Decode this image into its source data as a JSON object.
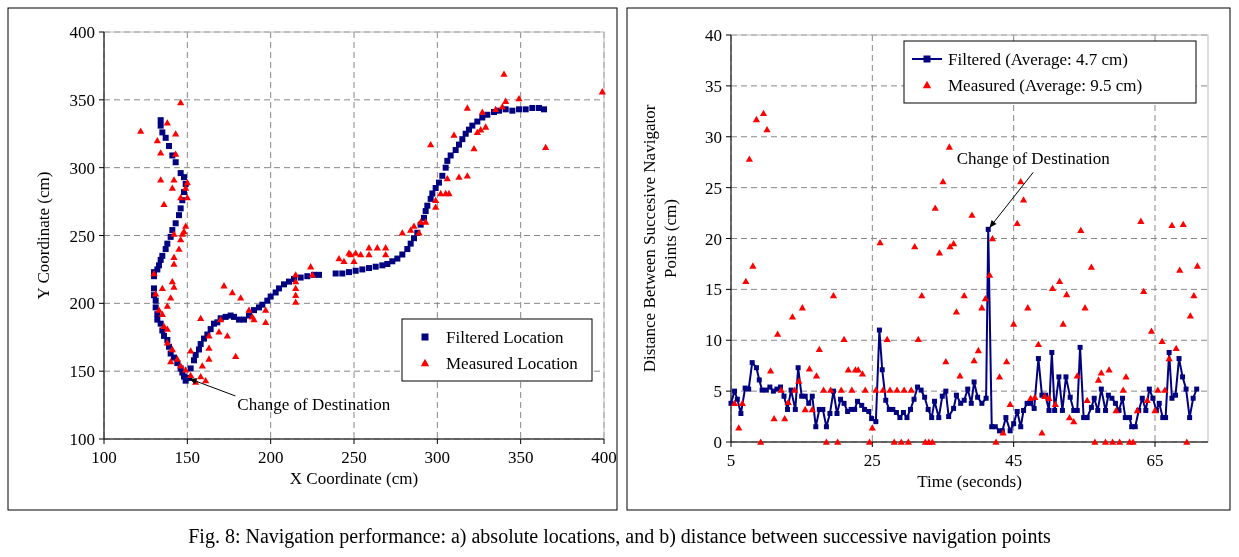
{
  "chart_data": [
    {
      "type": "scatter",
      "xlabel": "X Coordinate (cm)",
      "ylabel": "Y Coordinate (cm)",
      "xlim": [
        100,
        400
      ],
      "ylim": [
        100,
        400
      ],
      "xticks": [
        100,
        150,
        200,
        250,
        300,
        350,
        400
      ],
      "yticks": [
        100,
        150,
        200,
        250,
        300,
        350,
        400
      ],
      "grid": true,
      "legend": "bottom right",
      "annotations": [
        {
          "text": "Change of Destination",
          "x": 150,
          "y": 145
        },
        "Fig. 8: Navigation performance: a) absolute locations, and b) distance between successive navigation points"
      ],
      "series": [
        {
          "name": "Filtered Location",
          "color": "#000080",
          "marker": "square",
          "x": [
            134,
            134,
            135,
            137,
            139,
            141,
            143,
            146,
            148,
            149,
            148,
            147,
            146,
            145,
            143,
            141,
            140,
            138,
            137,
            135,
            134,
            133,
            132,
            130,
            130,
            130,
            130,
            131,
            131,
            132,
            132,
            134,
            135,
            136,
            138,
            139,
            140,
            142,
            144,
            146,
            147,
            148,
            149,
            151,
            152,
            154,
            155,
            157,
            158,
            160,
            162,
            164,
            166,
            168,
            170,
            173,
            176,
            178,
            181,
            184,
            187,
            190,
            193,
            195,
            198,
            200,
            203,
            205,
            208,
            211,
            214,
            218,
            222,
            226,
            229,
            239,
            243,
            247,
            251,
            255,
            259,
            263,
            267,
            270,
            273,
            276,
            279,
            282,
            284,
            286,
            288,
            290,
            292,
            293,
            294,
            296,
            297,
            299,
            301,
            303,
            305,
            306,
            308,
            311,
            313,
            315,
            317,
            319,
            321,
            324,
            327,
            330,
            334,
            337,
            341,
            345,
            349,
            353,
            357,
            361,
            364
          ],
          "values": [
            335,
            331,
            326,
            322,
            316,
            309,
            304,
            296,
            293,
            288,
            282,
            276,
            270,
            265,
            259,
            254,
            249,
            244,
            240,
            235,
            232,
            228,
            225,
            223,
            220,
            211,
            206,
            202,
            197,
            192,
            188,
            185,
            180,
            176,
            173,
            168,
            163,
            160,
            156,
            152,
            149,
            146,
            143,
            145,
            152,
            158,
            162,
            166,
            170,
            174,
            177,
            181,
            185,
            186,
            189,
            190,
            191,
            190,
            188,
            188,
            191,
            195,
            197,
            199,
            202,
            205,
            208,
            211,
            214,
            216,
            218,
            219,
            220,
            221,
            221,
            222,
            222,
            223,
            224,
            225,
            226,
            227,
            228,
            229,
            231,
            233,
            236,
            240,
            244,
            248,
            252,
            258,
            263,
            268,
            272,
            277,
            281,
            285,
            289,
            294,
            300,
            305,
            309,
            313,
            317,
            321,
            325,
            328,
            331,
            334,
            337,
            339,
            341,
            342,
            343,
            342,
            343,
            343,
            344,
            344,
            343
          ]
        },
        {
          "name": "Measured Location",
          "color": "#ff0000",
          "marker": "triangle",
          "x": [
            146,
            122,
            138,
            143,
            132,
            134,
            143,
            134,
            142,
            141,
            150,
            149,
            136,
            146,
            150,
            149,
            148,
            147,
            146,
            142,
            145,
            142,
            142,
            130,
            141,
            142,
            131,
            135,
            140,
            138,
            133,
            135,
            136,
            138,
            138,
            141,
            140,
            144,
            146,
            149,
            152,
            155,
            158,
            161,
            159,
            163,
            163,
            152,
            163,
            169,
            174,
            170,
            158,
            179,
            172,
            177,
            182,
            187,
            189,
            190,
            197,
            197,
            215,
            215,
            215,
            215,
            215,
            224,
            225,
            241,
            247,
            244,
            250,
            251,
            248,
            254,
            259,
            259,
            264,
            269,
            269,
            279,
            284,
            286,
            289,
            290,
            293,
            299,
            299,
            302,
            305,
            307,
            306,
            313,
            318,
            296,
            310,
            322,
            324,
            326,
            329,
            318,
            327,
            335,
            339,
            341,
            340,
            349,
            365,
            399
          ],
          "values": [
            348,
            327,
            333,
            325,
            320,
            311,
            310,
            291,
            291,
            285,
            289,
            285,
            273,
            278,
            278,
            257,
            253,
            251,
            247,
            251,
            240,
            234,
            229,
            222,
            216,
            212,
            207,
            211,
            204,
            198,
            195,
            192,
            183,
            181,
            171,
            166,
            157,
            159,
            154,
            151,
            147,
            142,
            146,
            143,
            154,
            159,
            167,
            165,
            176,
            179,
            176,
            188,
            189,
            161,
            213,
            208,
            204,
            195,
            190,
            188,
            195,
            186,
            221,
            216,
            211,
            206,
            201,
            227,
            221,
            233,
            237,
            231,
            231,
            237,
            236,
            236,
            241,
            236,
            241,
            241,
            236,
            252,
            254,
            257,
            252,
            260,
            260,
            276,
            271,
            281,
            281,
            281,
            292,
            293,
            294,
            317,
            324,
            314,
            326,
            328,
            330,
            344,
            341,
            343,
            345,
            349,
            369,
            351,
            315,
            356
          ]
        }
      ]
    },
    {
      "type": "line",
      "xlabel": "Time (seconds)",
      "ylabel": "Distance Between Succesive Navigator Points (cm)",
      "xlim": [
        5,
        72.5
      ],
      "ylim": [
        0,
        40
      ],
      "xticks": [
        5,
        25,
        45,
        65
      ],
      "yticks": [
        0,
        5,
        10,
        15,
        20,
        25,
        30,
        35,
        40
      ],
      "grid": true,
      "legend": "top right",
      "annotations": [
        {
          "text": "Change of Destination",
          "x": 41.4,
          "y": 20.9
        }
      ],
      "series": [
        {
          "name": "Filtered (Average: 4.7 cm)",
          "color": "#000080",
          "marker": "square",
          "x": [
            5.0,
            5.5,
            5.9,
            6.4,
            7.0,
            7.5,
            8.0,
            8.6,
            9.0,
            9.4,
            10.0,
            10.5,
            11.0,
            11.5,
            12.0,
            12.5,
            13.0,
            13.5,
            14.1,
            14.5,
            15.0,
            15.5,
            16.0,
            16.5,
            17.0,
            17.5,
            18.0,
            18.5,
            19.0,
            19.5,
            20.0,
            20.5,
            21.0,
            21.5,
            22.0,
            22.5,
            22.9,
            23.5,
            23.9,
            24.5,
            24.9,
            25.5,
            26.0,
            26.4,
            26.9,
            27.4,
            27.9,
            28.4,
            28.9,
            29.4,
            29.9,
            30.4,
            30.9,
            31.4,
            31.9,
            32.4,
            32.9,
            33.4,
            33.8,
            34.4,
            34.9,
            35.4,
            35.8,
            36.5,
            36.9,
            37.5,
            38.0,
            38.5,
            39.0,
            39.4,
            39.9,
            40.5,
            41.1,
            41.4,
            41.9,
            42.4,
            43.0,
            43.4,
            43.9,
            44.5,
            45.0,
            45.5,
            46.0,
            46.4,
            46.9,
            47.4,
            47.9,
            48.5,
            49.0,
            49.5,
            50.0,
            50.4,
            50.8,
            51.4,
            51.9,
            52.4,
            53.0,
            53.5,
            54.0,
            54.4,
            54.9,
            55.4,
            56.0,
            56.4,
            56.9,
            57.4,
            58.0,
            58.4,
            58.9,
            59.4,
            59.9,
            60.4,
            60.8,
            61.4,
            61.7,
            62.2,
            62.7,
            63.2,
            63.7,
            64.2,
            64.7,
            65.2,
            65.6,
            66.1,
            66.5,
            67.0,
            67.4,
            67.9,
            68.4,
            68.9,
            69.4,
            69.9,
            70.4,
            70.9
          ],
          "values": [
            3.8,
            5.0,
            4.2,
            2.8,
            5.3,
            5.2,
            7.8,
            7.3,
            6.1,
            5.1,
            5.1,
            5.4,
            5.0,
            5.2,
            5.4,
            4.5,
            3.2,
            5.1,
            3.2,
            7.3,
            4.5,
            4.5,
            3.8,
            4.5,
            1.5,
            3.2,
            3.2,
            1.5,
            2.8,
            5.0,
            2.8,
            4.2,
            3.8,
            3.0,
            3.2,
            3.2,
            4.0,
            3.6,
            3.2,
            3.0,
            2.3,
            2.0,
            11.0,
            7.1,
            4.1,
            3.2,
            3.2,
            2.9,
            2.4,
            2.9,
            2.4,
            3.2,
            4.2,
            5.4,
            5.1,
            4.4,
            3.2,
            2.4,
            4.0,
            2.4,
            4.5,
            5.0,
            2.5,
            3.3,
            4.6,
            3.8,
            4.1,
            5.2,
            3.8,
            5.9,
            4.4,
            3.8,
            4.3,
            20.9,
            1.5,
            1.5,
            1.1,
            1.1,
            2.4,
            1.1,
            1.8,
            3.0,
            1.5,
            3.1,
            3.8,
            3.8,
            3.3,
            8.2,
            4.6,
            4.6,
            3.1,
            8.8,
            3.1,
            6.4,
            3.1,
            6.4,
            4.4,
            3.1,
            3.1,
            9.3,
            2.4,
            2.4,
            3.4,
            4.3,
            3.1,
            5.2,
            3.1,
            4.6,
            4.3,
            3.8,
            3.1,
            4.3,
            2.4,
            2.4,
            1.5,
            1.5,
            3.1,
            4.3,
            3.1,
            5.2,
            4.3,
            3.1,
            3.8,
            2.4,
            2.4,
            8.8,
            4.3,
            4.6,
            8.2,
            6.4,
            5.2,
            2.4,
            4.3,
            5.2
          ]
        },
        {
          "name": "Measured (Average: 9.5 cm)",
          "color": "#ff0000",
          "type": "scatter",
          "marker": "triangle",
          "x": [
            5.5,
            6.1,
            6.6,
            7.1,
            7.6,
            8.1,
            8.6,
            9.6,
            10.1,
            9.2,
            10.6,
            11.1,
            11.6,
            12.1,
            12.6,
            13.1,
            13.7,
            14.0,
            14.6,
            15.1,
            15.5,
            16.1,
            16.5,
            17.1,
            17.5,
            18.1,
            18.5,
            19.1,
            19.5,
            20.1,
            20.6,
            21.0,
            21.6,
            22.1,
            22.6,
            23.0,
            23.6,
            24.0,
            24.6,
            25.0,
            25.5,
            26.1,
            26.5,
            27.1,
            27.5,
            28.1,
            28.5,
            29.1,
            29.5,
            30.1,
            30.5,
            31.0,
            31.5,
            32.0,
            32.5,
            33.0,
            33.5,
            33.9,
            34.5,
            35.0,
            35.9,
            35.4,
            36.0,
            36.5,
            36.9,
            37.4,
            38.0,
            39.1,
            39.4,
            40.0,
            40.5,
            41.0,
            41.6,
            42.0,
            42.5,
            43.0,
            43.5,
            44.0,
            44.5,
            45.0,
            45.5,
            46.0,
            46.4,
            47.0,
            47.4,
            48.0,
            48.5,
            49.0,
            49.4,
            50.0,
            50.5,
            50.9,
            51.5,
            52.0,
            52.5,
            52.9,
            53.5,
            54.0,
            54.5,
            55.1,
            55.4,
            56.0,
            56.5,
            57.0,
            57.4,
            58.0,
            58.5,
            59.0,
            59.5,
            60.0,
            60.5,
            60.9,
            61.4,
            61.9,
            62.5,
            63.0,
            63.4,
            63.9,
            64.5,
            65.0,
            65.4,
            66.0,
            66.4,
            67.0,
            67.4,
            68.0,
            68.5,
            69.0,
            69.5,
            70.0,
            70.5,
            71.0
          ],
          "values": [
            3.8,
            1.4,
            3.8,
            15.8,
            27.8,
            17.3,
            31.7,
            32.3,
            30.7,
            0,
            7.0,
            2.3,
            10.6,
            5.1,
            2.3,
            3.9,
            12.3,
            5.1,
            6.0,
            13.2,
            3.2,
            7.2,
            3.2,
            6.5,
            9.1,
            5.1,
            0,
            5.1,
            14.4,
            0,
            5.1,
            10.1,
            7.1,
            5.1,
            7.1,
            7.1,
            6.7,
            5.1,
            0,
            1.4,
            5.1,
            19.6,
            5.1,
            10.1,
            5.1,
            0,
            5.1,
            0,
            5.1,
            0,
            5.1,
            19.2,
            10.1,
            14.4,
            0,
            0,
            0,
            23.0,
            18.6,
            25.6,
            29.0,
            7.9,
            19.2,
            19.5,
            12.8,
            6.5,
            14.4,
            22.3,
            8.0,
            9.0,
            13.2,
            14.1,
            16.4,
            20.0,
            0,
            6.4,
            0.9,
            7.9,
            3.7,
            11.6,
            21.5,
            25.6,
            23.8,
            13.2,
            4.3,
            4.4,
            9.6,
            0.9,
            4.5,
            4.3,
            15.1,
            3.7,
            15.8,
            11.6,
            14.5,
            2.4,
            2.0,
            6.5,
            20.8,
            13.2,
            4.1,
            17.2,
            0,
            6.1,
            6.8,
            0,
            7.1,
            0,
            3.1,
            0,
            5.1,
            6.4,
            0,
            0,
            3.1,
            21.7,
            14.8,
            4.1,
            10.9,
            3.1,
            5.1,
            9.9,
            5.1,
            8.2,
            21.3,
            9.2,
            16.9,
            21.4,
            0,
            12.4,
            14.4,
            17.3
          ]
        }
      ]
    }
  ]
}
